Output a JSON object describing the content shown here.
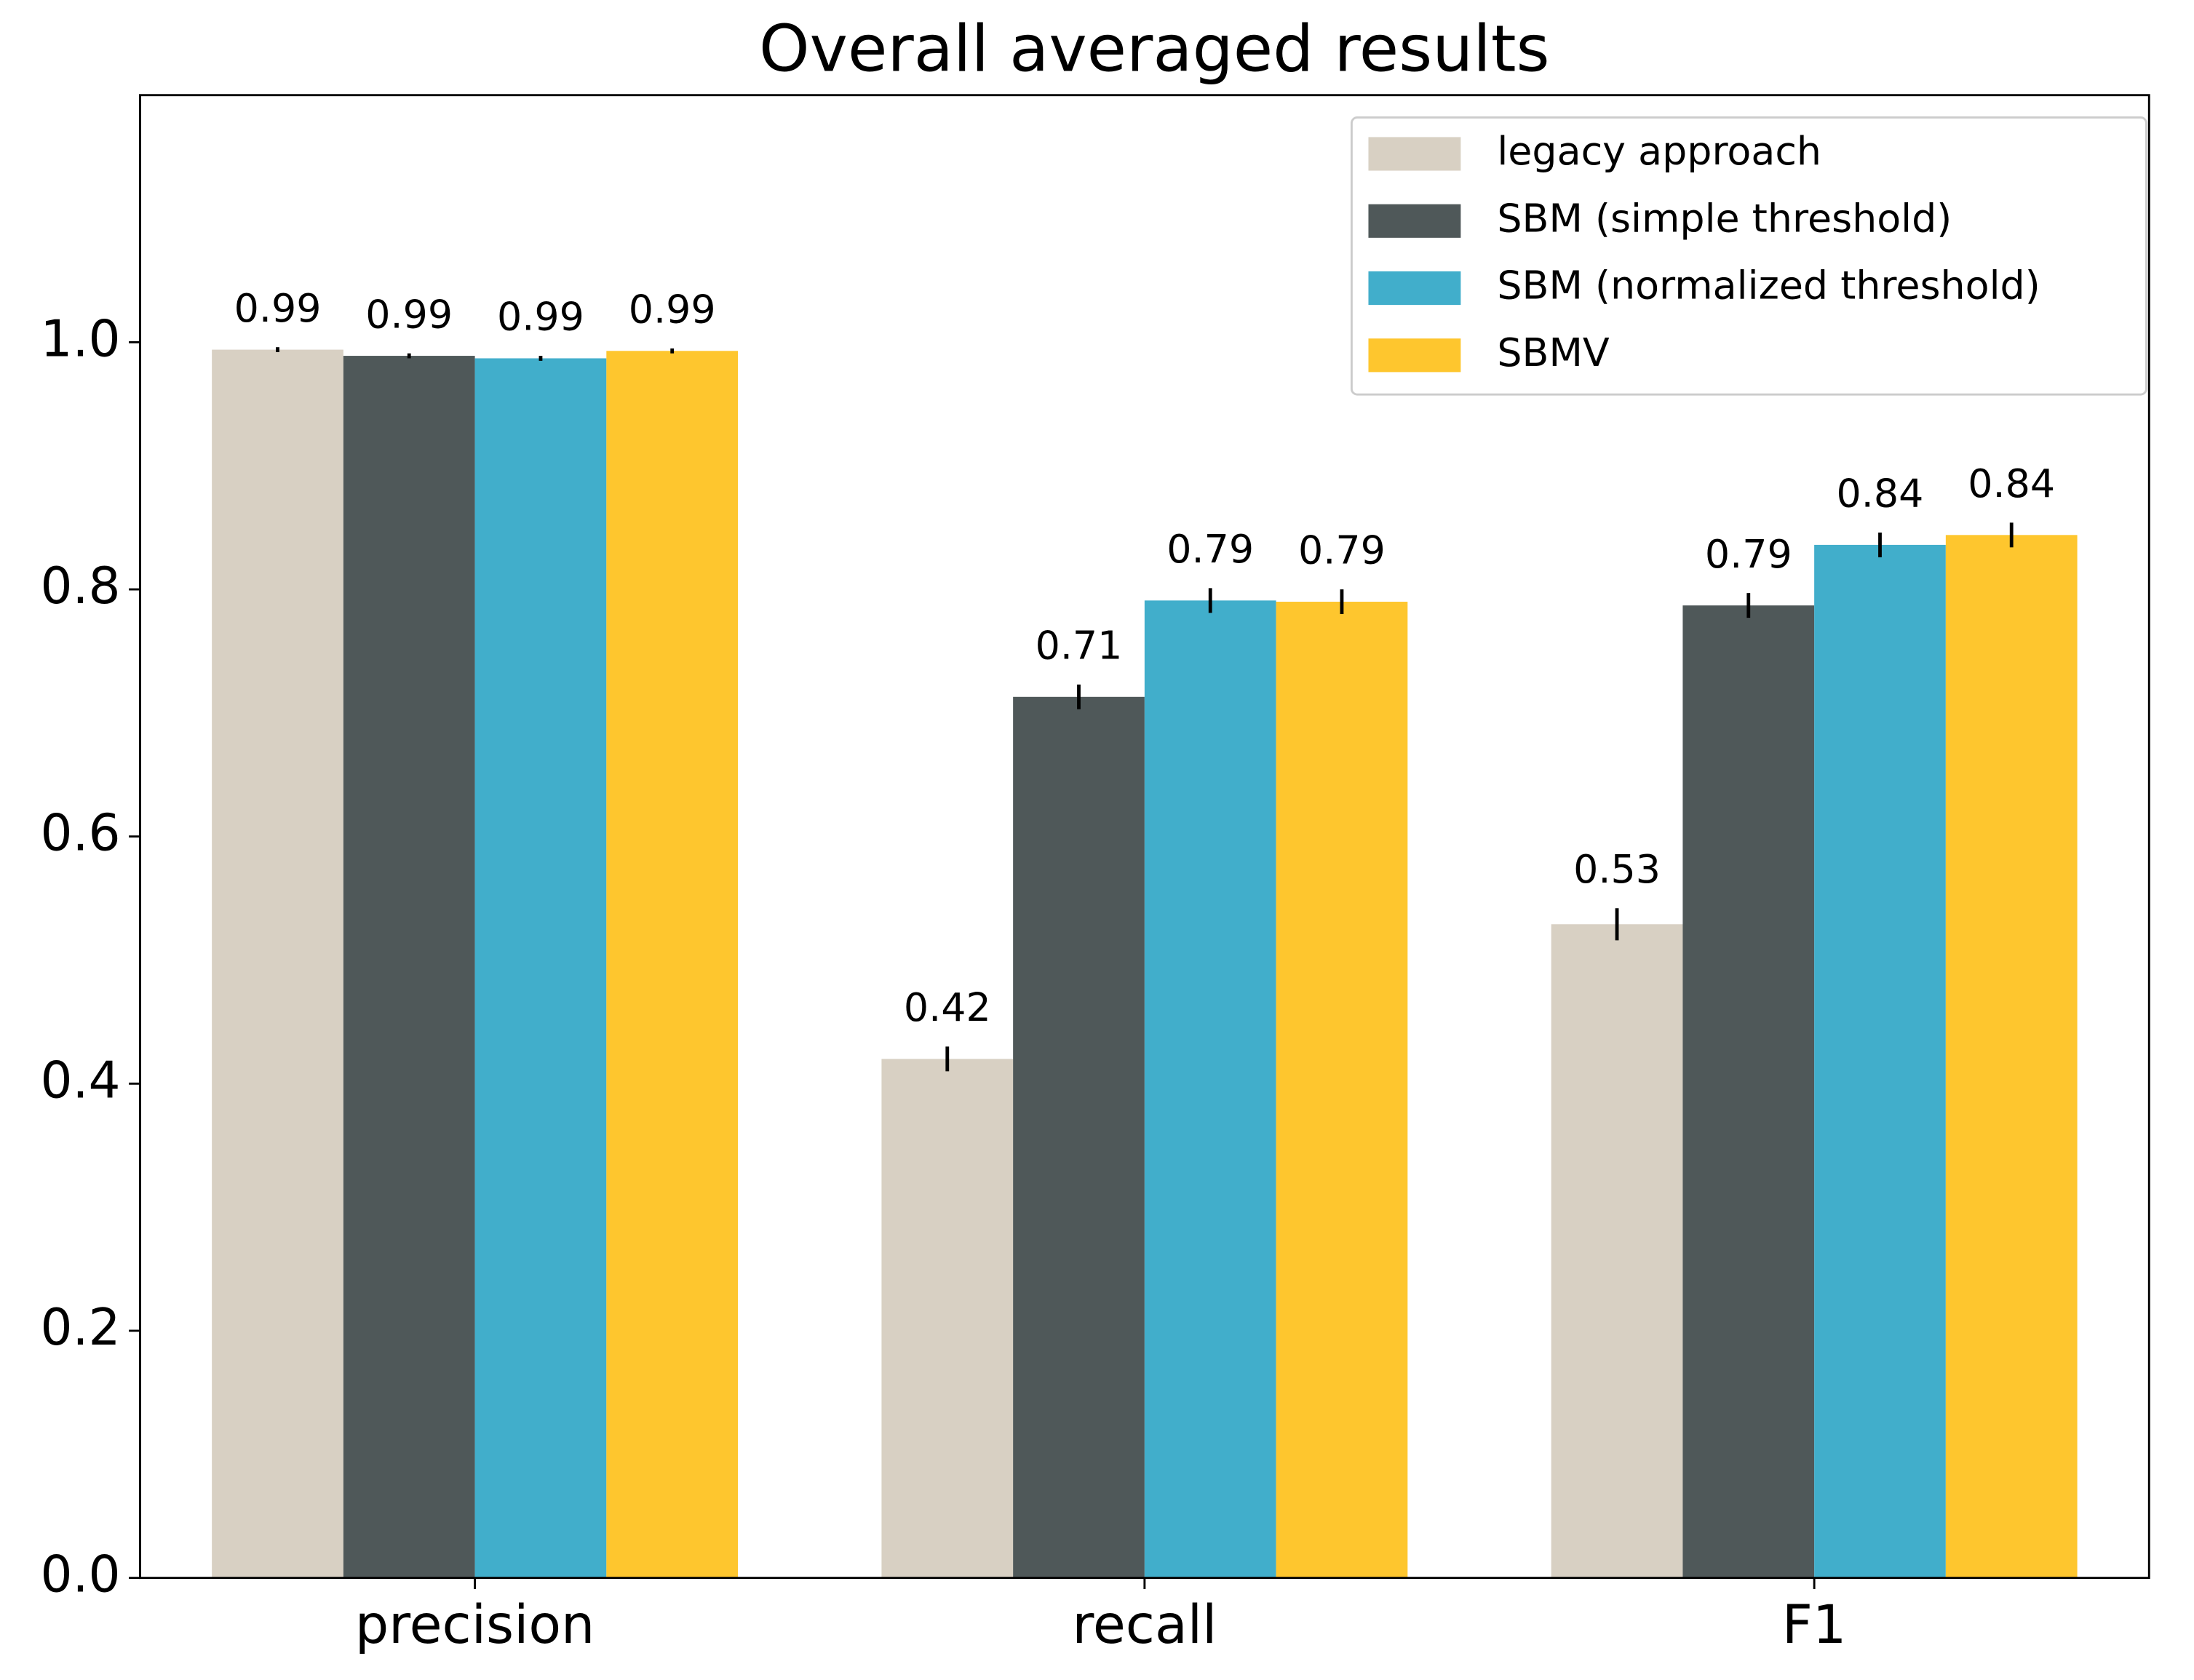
{
  "chart_data": {
    "type": "bar",
    "title": "Overall averaged results",
    "categories": [
      "precision",
      "recall",
      "F1"
    ],
    "series": [
      {
        "name": "legacy approach",
        "color": "#d8d0c3",
        "values": [
          0.994,
          0.42,
          0.529
        ],
        "errors": [
          0.002,
          0.01,
          0.013
        ],
        "value_labels": [
          "0.99",
          "0.42",
          "0.53"
        ]
      },
      {
        "name": "SBM (simple threshold)",
        "color": "#4f5859",
        "values": [
          0.989,
          0.713,
          0.787
        ],
        "errors": [
          0.002,
          0.01,
          0.01
        ],
        "value_labels": [
          "0.99",
          "0.71",
          "0.79"
        ]
      },
      {
        "name": "SBM (normalized threshold)",
        "color": "#41aecb",
        "values": [
          0.987,
          0.791,
          0.836
        ],
        "errors": [
          0.002,
          0.01,
          0.01
        ],
        "value_labels": [
          "0.99",
          "0.79",
          "0.84"
        ]
      },
      {
        "name": "SBMV",
        "color": "#fec62e",
        "values": [
          0.993,
          0.79,
          0.844
        ],
        "errors": [
          0.002,
          0.01,
          0.01
        ],
        "value_labels": [
          "0.99",
          "0.79",
          "0.84"
        ]
      }
    ],
    "ylim": [
      0,
      1.2
    ],
    "yticks": [
      {
        "value": 0,
        "label": "0.0"
      },
      0.2,
      0.4,
      0.6,
      0.8,
      {
        "value": 1,
        "label": "1.0"
      }
    ],
    "legend": "upper right",
    "grid": false
  }
}
